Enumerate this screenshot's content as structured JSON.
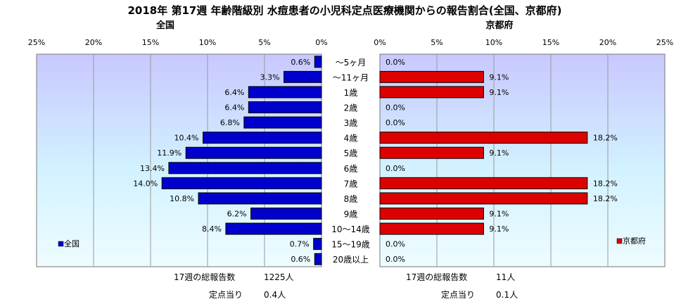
{
  "chart_data": {
    "type": "bar",
    "title": "2018年 第17週 年齢階級別 水痘患者の小児科定点医療機関からの報告割合(全国、京都府)",
    "categories": [
      "～5ヶ月",
      "～11ヶ月",
      "1歳",
      "2歳",
      "3歳",
      "4歳",
      "5歳",
      "6歳",
      "7歳",
      "8歳",
      "9歳",
      "10～14歳",
      "15～19歳",
      "20歳以上"
    ],
    "left_panel": {
      "title": "全国",
      "legend": "全国",
      "color": "#0000cc",
      "values": [
        0.6,
        3.3,
        6.4,
        6.4,
        6.8,
        10.4,
        11.9,
        13.4,
        14.0,
        10.8,
        6.2,
        8.4,
        0.7,
        0.6
      ],
      "labels": [
        "0.6%",
        "3.3%",
        "6.4%",
        "6.4%",
        "6.8%",
        "10.4%",
        "11.9%",
        "13.4%",
        "14.0%",
        "10.8%",
        "6.2%",
        "8.4%",
        "0.7%",
        "0.6%"
      ],
      "xlim": [
        0,
        25
      ],
      "ticks": [
        0,
        5,
        10,
        15,
        20,
        25
      ],
      "tick_labels": [
        "0%",
        "5%",
        "10%",
        "15%",
        "20%",
        "25%"
      ]
    },
    "right_panel": {
      "title": "京都府",
      "legend": "京都府",
      "color": "#dd0000",
      "values": [
        0.0,
        9.1,
        9.1,
        0.0,
        0.0,
        18.2,
        9.1,
        0.0,
        18.2,
        18.2,
        9.1,
        9.1,
        0.0,
        0.0
      ],
      "labels": [
        "0.0%",
        "9.1%",
        "9.1%",
        "0.0%",
        "0.0%",
        "18.2%",
        "9.1%",
        "0.0%",
        "18.2%",
        "18.2%",
        "9.1%",
        "9.1%",
        "0.0%",
        "0.0%"
      ],
      "xlim": [
        0,
        25
      ],
      "ticks": [
        0,
        5,
        10,
        15,
        20,
        25
      ],
      "tick_labels": [
        "0%",
        "5%",
        "10%",
        "15%",
        "20%",
        "25%"
      ]
    },
    "legend_placement": "bottom-left (left panel), bottom-right (right panel)",
    "grid": true
  },
  "footer": {
    "national": {
      "total_label": "17週の総報告数",
      "total_value": "1225人",
      "per_site_label": "定点当り",
      "per_site_value": "0.4人"
    },
    "kyoto": {
      "total_label": "17週の総報告数",
      "total_value": "11人",
      "per_site_label": "定点当り",
      "per_site_value": "0.1人"
    }
  }
}
